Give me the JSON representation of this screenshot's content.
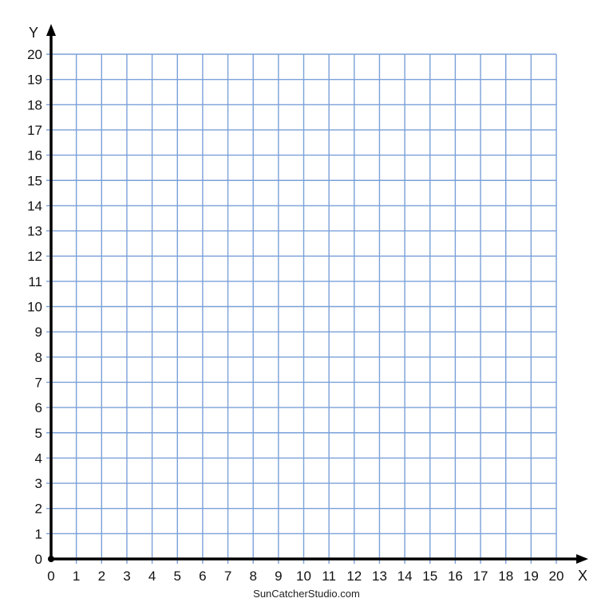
{
  "chart_data": {
    "type": "scatter",
    "title": "",
    "xlabel": "X",
    "ylabel": "Y",
    "xlim": [
      0,
      20
    ],
    "ylim": [
      0,
      20
    ],
    "xticks": [
      0,
      1,
      2,
      3,
      4,
      5,
      6,
      7,
      8,
      9,
      10,
      11,
      12,
      13,
      14,
      15,
      16,
      17,
      18,
      19,
      20
    ],
    "yticks": [
      0,
      1,
      2,
      3,
      4,
      5,
      6,
      7,
      8,
      9,
      10,
      11,
      12,
      13,
      14,
      15,
      16,
      17,
      18,
      19,
      20
    ],
    "grid": true,
    "series": [],
    "colors": {
      "grid": "#7aa0d8",
      "axis": "#000000"
    }
  },
  "footer": {
    "watermark": "SunCatcherStudio.com"
  }
}
